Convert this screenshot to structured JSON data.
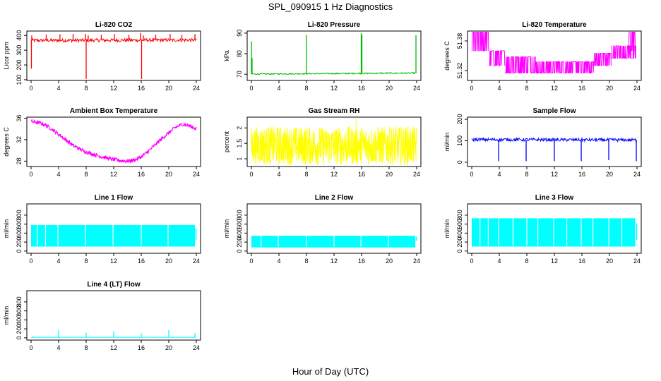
{
  "figure": {
    "title": "SPL_090915  1 Hz Diagnostics",
    "xlabel": "Hour of Day (UTC)"
  },
  "chart_data": [
    {
      "type": "line",
      "title": "Li-820 CO2",
      "ylabel": "Licor ppm",
      "color": "#ff0000",
      "xlim": [
        0,
        24
      ],
      "xticks": [
        0,
        4,
        8,
        12,
        16,
        20,
        24
      ],
      "ylim": [
        95,
        430
      ],
      "yticks": [
        100,
        200,
        300,
        400
      ],
      "baseline": [
        [
          0,
          370
        ],
        [
          24,
          372
        ]
      ],
      "band": [
        [
          0,
          355,
          378
        ],
        [
          24,
          358,
          380
        ]
      ],
      "spikes": [
        [
          0.05,
          175
        ],
        [
          0.1,
          400
        ],
        [
          2.2,
          405
        ],
        [
          4.2,
          408
        ],
        [
          6.1,
          410
        ],
        [
          7.9,
          410
        ],
        [
          8.0,
          105
        ],
        [
          8.3,
          400
        ],
        [
          10.2,
          405
        ],
        [
          12.1,
          410
        ],
        [
          14.2,
          404
        ],
        [
          15.9,
          418
        ],
        [
          16.05,
          105
        ],
        [
          16.3,
          400
        ],
        [
          18.1,
          405
        ],
        [
          20.2,
          410
        ],
        [
          21.9,
          403
        ],
        [
          23.8,
          410
        ]
      ]
    },
    {
      "type": "line",
      "title": "Li-820 Pressure",
      "ylabel": "kPa",
      "color": "#00bb00",
      "xlim": [
        0,
        24
      ],
      "xticks": [
        0,
        4,
        8,
        12,
        16,
        20,
        24
      ],
      "ylim": [
        67,
        91
      ],
      "yticks": [
        70,
        80,
        90
      ],
      "baseline": [
        [
          0,
          70.1
        ],
        [
          24,
          70.6
        ]
      ],
      "band": [
        [
          0,
          69.8,
          70.4
        ],
        [
          24,
          70.3,
          70.9
        ]
      ],
      "spikes": [
        [
          0.0,
          86
        ],
        [
          0.1,
          78
        ],
        [
          8.0,
          89
        ],
        [
          15.95,
          90
        ],
        [
          16.05,
          89
        ],
        [
          23.9,
          89
        ]
      ]
    },
    {
      "type": "step",
      "title": "Li-820 Temperature",
      "ylabel": "degrees C",
      "color": "#ff00ff",
      "xlim": [
        0,
        24
      ],
      "xticks": [
        0,
        4,
        8,
        12,
        16,
        20,
        24
      ],
      "ylim": [
        51.3,
        51.4
      ],
      "yticks": [
        51.32,
        51.38
      ],
      "segments": [
        [
          0.0,
          2.5,
          51.36,
          51.4
        ],
        [
          2.5,
          4.8,
          51.33,
          51.36
        ],
        [
          4.8,
          9.3,
          51.315,
          51.348
        ],
        [
          9.3,
          17.8,
          51.315,
          51.338
        ],
        [
          17.8,
          20.3,
          51.33,
          51.355
        ],
        [
          20.3,
          23.9,
          51.345,
          51.37
        ],
        [
          22.8,
          23.9,
          51.36,
          51.4
        ]
      ]
    },
    {
      "type": "line",
      "title": "Ambient Box Temperature",
      "ylabel": "degrees C",
      "color": "#ff00ff",
      "xlim": [
        0,
        24
      ],
      "xticks": [
        0,
        4,
        8,
        12,
        16,
        20,
        24
      ],
      "ylim": [
        27.0,
        36.2
      ],
      "yticks": [
        28,
        32,
        36
      ],
      "band_width": 0.7,
      "x": [
        0,
        1,
        2,
        3,
        4,
        5,
        6,
        7,
        8,
        9,
        10,
        11,
        12,
        13,
        14,
        15,
        16,
        17,
        18,
        19,
        20,
        21,
        22,
        23,
        24
      ],
      "y": [
        35.4,
        35.2,
        34.8,
        34.0,
        33.0,
        32.0,
        31.0,
        30.3,
        29.7,
        29.3,
        28.9,
        28.6,
        28.3,
        28.1,
        28.0,
        28.2,
        28.8,
        29.8,
        31.0,
        32.2,
        33.3,
        34.3,
        34.9,
        34.6,
        34.0
      ]
    },
    {
      "type": "noise",
      "title": "Gas Stream RH",
      "ylabel": "percent",
      "color": "#ffff00",
      "xlim": [
        0,
        24
      ],
      "xticks": [
        0,
        4,
        8,
        12,
        16,
        20,
        24
      ],
      "ylim": [
        0.75,
        2.35
      ],
      "yticks": [
        1.0,
        1.5,
        2.0
      ],
      "band": [
        [
          0,
          0.8,
          2.05
        ],
        [
          24,
          0.8,
          2.05
        ]
      ],
      "peak": 2.3
    },
    {
      "type": "line",
      "title": "Sample Flow",
      "ylabel": "ml/min",
      "color": "#0000ff",
      "xlim": [
        0,
        24
      ],
      "xticks": [
        0,
        4,
        8,
        12,
        16,
        20,
        24
      ],
      "ylim": [
        -20,
        210
      ],
      "yticks": [
        0,
        100,
        200
      ],
      "baseline": [
        [
          0,
          105
        ],
        [
          24,
          103
        ]
      ],
      "band": [
        [
          0,
          98,
          113
        ],
        [
          24,
          96,
          111
        ]
      ],
      "spikes": [
        [
          3.9,
          5
        ],
        [
          7.9,
          5
        ],
        [
          12.0,
          5
        ],
        [
          15.9,
          5
        ],
        [
          19.9,
          10
        ],
        [
          23.9,
          5
        ]
      ]
    },
    {
      "type": "pulse",
      "title": "Line 1 Flow",
      "ylabel": "ml/min",
      "color": "#00ffff",
      "xlim": [
        0,
        24
      ],
      "xticks": [
        0,
        4,
        8,
        12,
        16,
        20,
        24
      ],
      "ylim": [
        -50,
        1050
      ],
      "yticks": [
        0,
        200,
        400,
        600,
        800
      ],
      "high": 580,
      "low": 100,
      "high_end": 500,
      "gaps": [
        0.9,
        2.1,
        3.9,
        7.9,
        11.9,
        16.0,
        19.9,
        23.9
      ]
    },
    {
      "type": "pulse",
      "title": "Line 2 Flow",
      "ylabel": "ml/min",
      "color": "#00ffff",
      "xlim": [
        0,
        24
      ],
      "xticks": [
        0,
        4,
        8,
        12,
        16,
        20,
        24
      ],
      "ylim": [
        -50,
        1050
      ],
      "yticks": [
        0,
        200,
        400,
        600,
        800
      ],
      "high": 340,
      "low": 80,
      "high_end": 320,
      "gaps": [
        1.4,
        3.9,
        8.0,
        12.0,
        15.9,
        19.9,
        23.9
      ]
    },
    {
      "type": "pulse",
      "title": "Line 3 Flow",
      "ylabel": "ml/min",
      "color": "#00ffff",
      "xlim": [
        0,
        24
      ],
      "xticks": [
        0,
        4,
        8,
        12,
        16,
        20,
        24
      ],
      "ylim": [
        -50,
        1050
      ],
      "yticks": [
        0,
        200,
        400,
        600,
        800
      ],
      "high": 730,
      "low": 100,
      "high_end": 620,
      "gaps": [
        1.2,
        2.4,
        3.9,
        6.0,
        8.0,
        9.6,
        11.9,
        13.8,
        15.9,
        17.6,
        19.9,
        21.8,
        23.8
      ]
    },
    {
      "type": "line",
      "title": "Line 4 (LT) Flow",
      "ylabel": "ml/min",
      "color": "#00ffff",
      "xlim": [
        0,
        24
      ],
      "xticks": [
        0,
        4,
        8,
        12,
        16,
        20,
        24
      ],
      "ylim": [
        -50,
        1050
      ],
      "yticks": [
        0,
        200,
        400,
        600,
        800
      ],
      "baseline": [
        [
          0,
          10
        ],
        [
          24,
          10
        ]
      ],
      "band": [
        [
          0,
          5,
          15
        ],
        [
          24,
          5,
          15
        ]
      ],
      "spikes": [
        [
          0.3,
          40
        ],
        [
          4.0,
          170
        ],
        [
          8.0,
          110
        ],
        [
          12.0,
          150
        ],
        [
          16.0,
          100
        ],
        [
          20.0,
          170
        ],
        [
          23.8,
          100
        ]
      ]
    }
  ]
}
